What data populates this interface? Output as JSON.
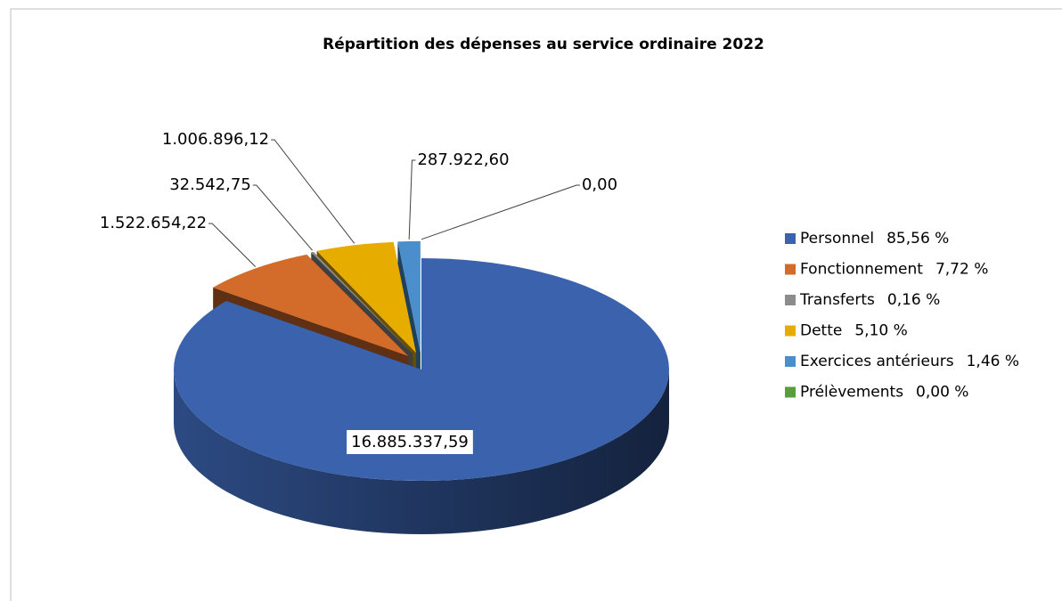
{
  "chart_data": {
    "type": "pie",
    "title": "Répartition  des dépenses au service ordinaire 2022",
    "categories": [
      "Personnel",
      "Fonctionnement",
      "Transferts",
      "Dette",
      "Exercices antérieurs",
      "Prélèvements"
    ],
    "values": [
      16885337.59,
      1522654.22,
      32542.75,
      1006896.12,
      287922.6,
      0
    ],
    "value_labels": [
      "16.885.337,59",
      "1.522.654,22",
      "32.542,75",
      "1.006.896,12",
      "287.922,60",
      "0,00"
    ],
    "shares": [
      85.56,
      7.72,
      0.16,
      5.1,
      1.46,
      0.0
    ],
    "share_labels": [
      "85,56 %",
      "7,72 %",
      "0,16 %",
      "5,10 %",
      "1,46 %",
      "0,00 %"
    ],
    "colors": [
      "#3a62ad",
      "#d36b2a",
      "#8c8c8c",
      "#e6ad00",
      "#4a8fcc",
      "#5a9e3a"
    ],
    "legend": "right"
  }
}
